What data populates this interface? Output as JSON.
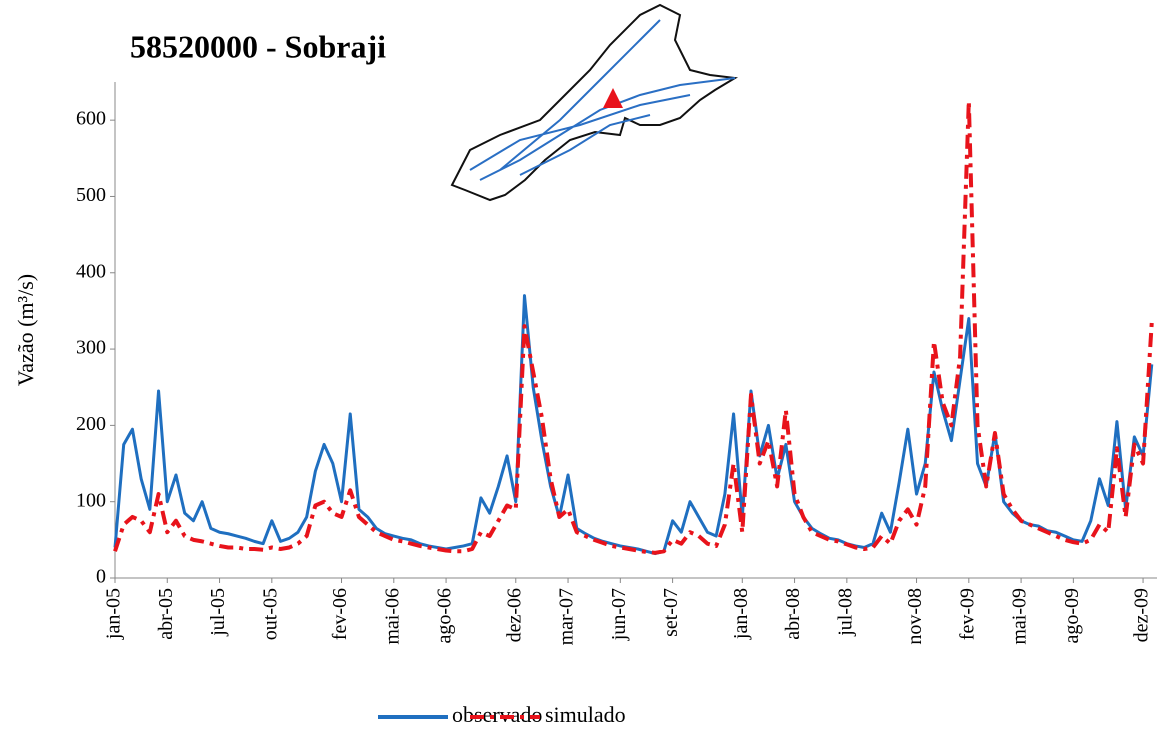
{
  "chart_data": {
    "type": "line",
    "title": "58520000 - Sobraji",
    "y_label": "Vazão (m³/s)",
    "xlim": [
      0,
      59.8
    ],
    "ylim": [
      0,
      650
    ],
    "yticks": [
      0,
      100,
      200,
      300,
      400,
      500,
      600
    ],
    "xticks": [
      {
        "value": 0,
        "label": "jan-05"
      },
      {
        "value": 3,
        "label": "abr-05"
      },
      {
        "value": 6,
        "label": "jul-05"
      },
      {
        "value": 9,
        "label": "out-05"
      },
      {
        "value": 13,
        "label": "fev-06"
      },
      {
        "value": 16,
        "label": "mai-06"
      },
      {
        "value": 19,
        "label": "ago-06"
      },
      {
        "value": 23,
        "label": "dez-06"
      },
      {
        "value": 26,
        "label": "mar-07"
      },
      {
        "value": 29,
        "label": "jun-07"
      },
      {
        "value": 32,
        "label": "set-07"
      },
      {
        "value": 36,
        "label": "jan-08"
      },
      {
        "value": 39,
        "label": "abr-08"
      },
      {
        "value": 42,
        "label": "jul-08"
      },
      {
        "value": 46,
        "label": "nov-08"
      },
      {
        "value": 49,
        "label": "fev-09"
      },
      {
        "value": 52,
        "label": "mai-09"
      },
      {
        "value": 55,
        "label": "ago-09"
      },
      {
        "value": 59,
        "label": "dez-09"
      }
    ],
    "x": [
      0,
      0.5,
      1,
      1.5,
      2,
      2.5,
      3,
      3.5,
      4,
      4.5,
      5,
      5.5,
      6,
      6.5,
      7,
      7.5,
      8,
      8.5,
      9,
      9.5,
      10,
      10.5,
      11,
      11.5,
      12,
      12.5,
      13,
      13.5,
      14,
      14.5,
      15,
      15.5,
      16,
      16.5,
      17,
      17.5,
      18,
      18.5,
      19,
      19.5,
      20,
      20.5,
      21,
      21.5,
      22,
      22.5,
      23,
      23.5,
      24,
      24.5,
      25,
      25.5,
      26,
      26.5,
      27,
      27.5,
      28,
      28.5,
      29,
      29.5,
      30,
      30.5,
      31,
      31.5,
      32,
      32.5,
      33,
      33.5,
      34,
      34.5,
      35,
      35.5,
      36,
      36.5,
      37,
      37.5,
      38,
      38.5,
      39,
      39.5,
      40,
      40.5,
      41,
      41.5,
      42,
      42.5,
      43,
      43.5,
      44,
      44.5,
      45,
      45.5,
      46,
      46.5,
      47,
      47.5,
      48,
      48.5,
      49,
      49.5,
      50,
      50.5,
      51,
      51.5,
      52,
      52.5,
      53,
      53.5,
      54,
      54.5,
      55,
      55.5,
      56,
      56.5,
      57,
      57.5,
      58,
      58.5,
      59,
      59.5
    ],
    "series": [
      {
        "name": "observado",
        "color": "#1f6fc0",
        "values": [
          40,
          175,
          195,
          130,
          90,
          245,
          100,
          135,
          85,
          75,
          100,
          65,
          60,
          58,
          55,
          52,
          48,
          45,
          75,
          48,
          52,
          60,
          80,
          140,
          175,
          150,
          100,
          215,
          90,
          80,
          65,
          58,
          55,
          52,
          50,
          45,
          42,
          40,
          38,
          40,
          42,
          45,
          105,
          85,
          120,
          160,
          100,
          370,
          250,
          180,
          120,
          80,
          135,
          65,
          58,
          52,
          48,
          45,
          42,
          40,
          38,
          35,
          32,
          35,
          75,
          60,
          100,
          80,
          60,
          55,
          110,
          215,
          80,
          245,
          160,
          200,
          130,
          175,
          100,
          80,
          65,
          58,
          52,
          50,
          45,
          42,
          40,
          45,
          85,
          60,
          125,
          195,
          110,
          150,
          270,
          220,
          180,
          260,
          340,
          150,
          120,
          190,
          100,
          85,
          75,
          70,
          68,
          62,
          60,
          55,
          50,
          48,
          75,
          130,
          95,
          205,
          90,
          185,
          160,
          280
        ]
      },
      {
        "name": "simulado",
        "color": "#e8131b",
        "values": [
          35,
          70,
          80,
          75,
          60,
          110,
          60,
          75,
          55,
          50,
          48,
          45,
          42,
          40,
          40,
          38,
          38,
          37,
          40,
          38,
          40,
          45,
          55,
          95,
          100,
          85,
          80,
          115,
          80,
          70,
          60,
          55,
          50,
          48,
          45,
          42,
          40,
          38,
          36,
          35,
          35,
          38,
          60,
          55,
          75,
          95,
          90,
          330,
          270,
          210,
          130,
          80,
          90,
          60,
          55,
          50,
          46,
          42,
          40,
          38,
          36,
          34,
          33,
          35,
          50,
          45,
          60,
          55,
          45,
          42,
          70,
          150,
          60,
          240,
          150,
          180,
          120,
          220,
          110,
          80,
          60,
          55,
          50,
          48,
          44,
          40,
          38,
          40,
          55,
          45,
          75,
          90,
          70,
          120,
          310,
          230,
          200,
          290,
          625,
          200,
          120,
          190,
          110,
          90,
          75,
          70,
          65,
          60,
          55,
          50,
          47,
          45,
          50,
          70,
          60,
          170,
          80,
          175,
          150,
          335
        ]
      }
    ]
  }
}
